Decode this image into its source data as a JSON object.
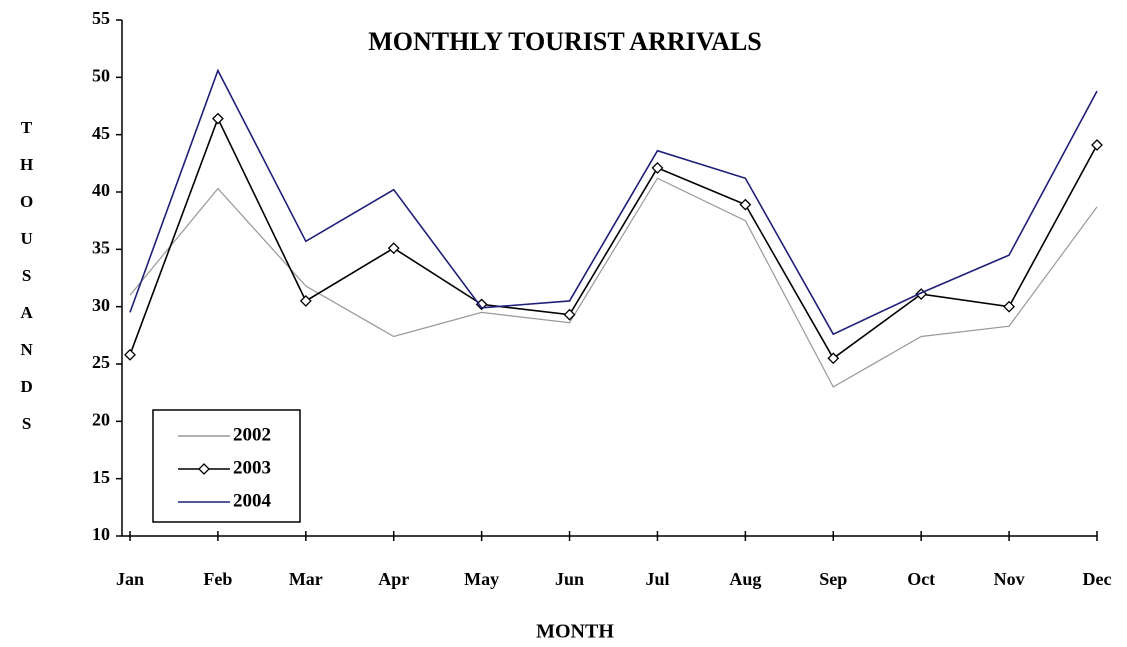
{
  "chart_data": {
    "type": "line",
    "title": "MONTHLY  TOURIST ARRIVALS",
    "x_label": "MONTH",
    "y_label": "THOUSANDS",
    "categories": [
      "Jan",
      "Feb",
      "Mar",
      "Apr",
      "May",
      "Jun",
      "Jul",
      "Aug",
      "Sep",
      "Oct",
      "Nov",
      "Dec"
    ],
    "series": [
      {
        "name": "2002",
        "color": "#999999",
        "values": [
          31,
          40.3,
          31.8,
          27.4,
          29.5,
          28.6,
          41.2,
          37.5,
          23,
          27.4,
          28.3,
          38.7
        ]
      },
      {
        "name": "2003",
        "color": "#000000",
        "marker": "diamond",
        "values": [
          25.8,
          46.4,
          30.5,
          35.1,
          30.2,
          29.3,
          42.1,
          38.9,
          25.5,
          31.1,
          30.0,
          44.1
        ]
      },
      {
        "name": "2004",
        "color": "#1f1f7a",
        "values": [
          29.5,
          50.6,
          35.7,
          40.2,
          29.9,
          30.5,
          43.6,
          41.2,
          27.6,
          31.2,
          34.5,
          48.8
        ]
      }
    ],
    "ylim": [
      10,
      55
    ],
    "yticks": [
      10,
      15,
      20,
      25,
      30,
      35,
      40,
      45,
      50,
      55
    ],
    "grid": false,
    "legend": "lower left"
  }
}
